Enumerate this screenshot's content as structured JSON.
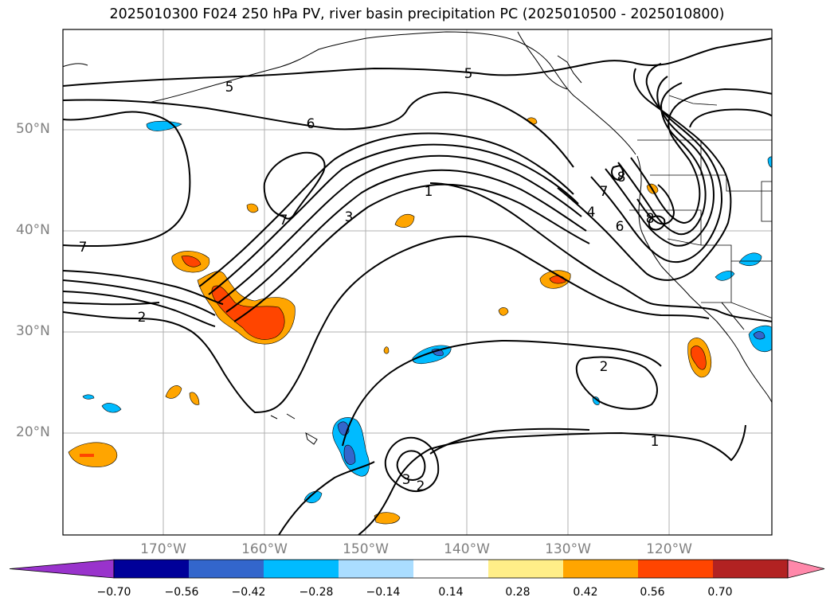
{
  "title": "2025010300 F024 250 hPa PV, river basin precipitation PC (2025010500 - 2025010800)",
  "lat_labels": [
    "50°N",
    "40°N",
    "30°N",
    "20°N"
  ],
  "lon_labels": [
    "170°W",
    "160°W",
    "150°W",
    "140°W",
    "130°W",
    "120°W"
  ],
  "colorbar": {
    "colors": [
      "#9933cc",
      "#000099",
      "#3366cc",
      "#00bbff",
      "#aaddff",
      "#ffffff",
      "#ffee88",
      "#ffa500",
      "#ff4500",
      "#b22222",
      "#ff88aa"
    ],
    "ticks": [
      "−0.70",
      "−0.56",
      "−0.42",
      "−0.28",
      "−0.14",
      "0.14",
      "0.28",
      "0.42",
      "0.56",
      "0.70"
    ]
  },
  "contour_labels": [
    "5",
    "6",
    "7",
    "7",
    "3",
    "1",
    "7",
    "4",
    "6",
    "8",
    "8",
    "2",
    "2",
    "1",
    "3",
    "2"
  ],
  "colors": {
    "grid": "#b0b0b0",
    "contour": "#000000",
    "axis_text": "#808080"
  }
}
